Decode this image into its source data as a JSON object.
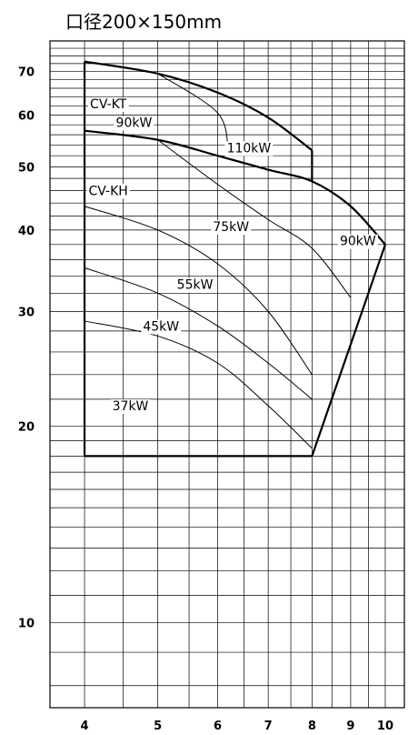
{
  "chart_data": {
    "type": "line",
    "title": "口径200×150mm",
    "x_scale": "log",
    "y_scale": "log",
    "xlim": [
      3.6,
      10.6
    ],
    "ylim": [
      7.4,
      78
    ],
    "x_ticks": [
      4,
      5,
      6,
      7,
      8,
      9,
      10
    ],
    "y_ticks": [
      10,
      20,
      30,
      40,
      50,
      60,
      70
    ],
    "grid": true,
    "series": [
      {
        "name": "CV-KT",
        "role": "limit",
        "points": [
          [
            4,
            72.5
          ],
          [
            5,
            69.5
          ],
          [
            6,
            65
          ],
          [
            7,
            59.5
          ],
          [
            8,
            53
          ]
        ]
      },
      {
        "name": "CV-KH",
        "role": "limit",
        "points": [
          [
            4,
            56.8
          ],
          [
            5,
            55
          ],
          [
            6,
            52
          ],
          [
            7,
            49.5
          ],
          [
            8,
            47.5
          ],
          [
            9,
            43.5
          ],
          [
            10,
            38
          ]
        ]
      },
      {
        "name": "110kW",
        "points": [
          [
            5,
            69.5
          ],
          [
            6,
            60.5
          ],
          [
            6.2,
            52.5
          ]
        ]
      },
      {
        "name": "90kW",
        "points": [
          [
            5,
            55
          ],
          [
            6,
            47
          ],
          [
            7,
            41.5
          ],
          [
            8,
            37.5
          ],
          [
            9,
            31.5
          ]
        ]
      },
      {
        "name": "75kW",
        "points": [
          [
            4,
            43.5
          ],
          [
            5,
            40
          ],
          [
            6,
            35.5
          ],
          [
            7,
            30
          ],
          [
            8,
            24
          ]
        ]
      },
      {
        "name": "55kW",
        "points": [
          [
            4,
            35
          ],
          [
            5,
            32
          ],
          [
            6,
            28.5
          ],
          [
            7,
            25
          ],
          [
            8,
            22
          ]
        ]
      },
      {
        "name": "45kW",
        "points": [
          [
            4,
            29
          ],
          [
            5,
            27.5
          ],
          [
            6,
            25
          ],
          [
            7,
            21.5
          ],
          [
            8,
            18.5
          ]
        ]
      }
    ],
    "boundary": {
      "left_edge": {
        "x": 4,
        "y_range": [
          18,
          72.5
        ]
      },
      "bottom_edge": {
        "y": 18,
        "x_range": [
          4,
          8
        ]
      },
      "right_edge": {
        "points": [
          [
            8,
            18
          ],
          [
            10,
            38
          ]
        ]
      },
      "kt_right_edge": {
        "x": 8,
        "y_range": [
          47.5,
          53
        ]
      }
    },
    "annotations": [
      {
        "text": "CV-KT",
        "x": 4.3,
        "y": 62.5
      },
      {
        "text": "90kW",
        "x": 4.65,
        "y": 58.5
      },
      {
        "text": "110kW",
        "x": 6.6,
        "y": 53.5
      },
      {
        "text": "CV-KH",
        "x": 4.3,
        "y": 46
      },
      {
        "text": "75kW",
        "x": 6.25,
        "y": 40.5
      },
      {
        "text": "90kW",
        "x": 9.2,
        "y": 38.5
      },
      {
        "text": "55kW",
        "x": 5.6,
        "y": 33
      },
      {
        "text": "45kW",
        "x": 5.05,
        "y": 28.5
      },
      {
        "text": "37kW",
        "x": 4.6,
        "y": 21.5
      }
    ]
  }
}
